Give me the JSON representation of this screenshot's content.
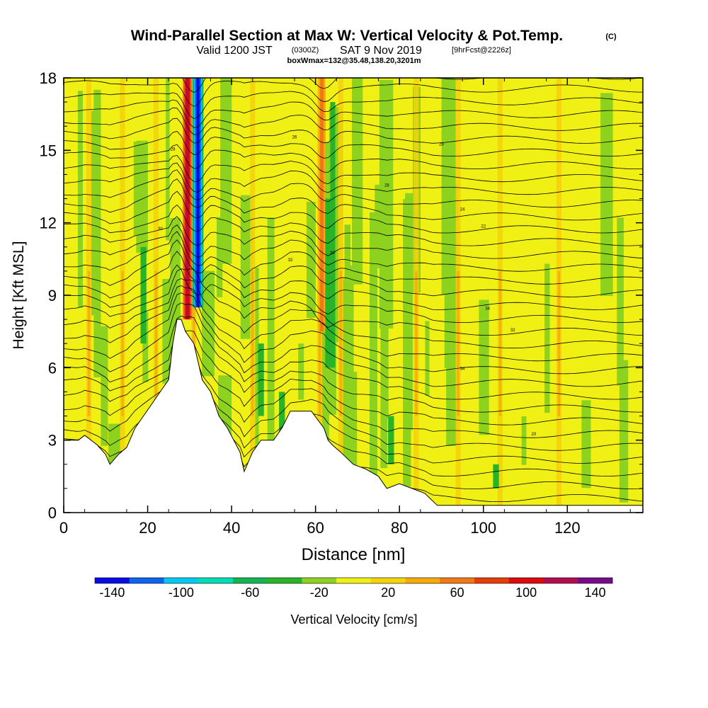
{
  "chart_data": {
    "type": "heatmap",
    "title": {
      "main": "Wind-Parallel Section at Max W: Vertical Velocity & Pot.Temp.",
      "copyright": "(C)",
      "line2_a": "Valid 1200 JST",
      "line2_b": "(0300Z)",
      "line2_c": "SAT 9 Nov 2019",
      "line2_d": "[9hrFcst@2226z]",
      "line3": "boxWmax=132@35.48,138.20,3201m"
    },
    "xlabel": "Distance [nm]",
    "ylabel": "Height [Kft MSL]",
    "xlim": [
      0,
      138
    ],
    "ylim": [
      0,
      18
    ],
    "xticks": [
      "0",
      "20",
      "40",
      "60",
      "80",
      "100",
      "120"
    ],
    "yticks": [
      "0",
      "3",
      "6",
      "9",
      "12",
      "15",
      "18"
    ],
    "colorbar": {
      "label": "Vertical Velocity [cm/s]",
      "tick_labels": [
        "-140",
        "-100",
        "-60",
        "-20",
        "20",
        "60",
        "100",
        "140"
      ],
      "colors": [
        "#0a0ae6",
        "#0a64f0",
        "#00c8f0",
        "#00dcb4",
        "#14b450",
        "#28b428",
        "#8cd21e",
        "#f0f014",
        "#f5d20a",
        "#f5aa0a",
        "#f07814",
        "#e63c0a",
        "#dc0a0a",
        "#b40a50",
        "#780a8c"
      ]
    },
    "terrain_kft": [
      [
        0,
        3.0
      ],
      [
        3.5,
        3.0
      ],
      [
        5,
        3.2
      ],
      [
        8,
        2.8
      ],
      [
        10,
        2.4
      ],
      [
        11,
        2.0
      ],
      [
        13,
        2.4
      ],
      [
        15,
        2.7
      ],
      [
        17,
        3.5
      ],
      [
        19,
        4.0
      ],
      [
        21,
        4.5
      ],
      [
        23,
        5.0
      ],
      [
        25,
        5.5
      ],
      [
        26,
        7.0
      ],
      [
        27,
        8.0
      ],
      [
        28,
        8.0
      ],
      [
        29,
        7.5
      ],
      [
        31,
        7.0
      ],
      [
        33,
        5.5
      ],
      [
        35,
        5.0
      ],
      [
        37,
        4.0
      ],
      [
        39,
        3.5
      ],
      [
        42,
        2.5
      ],
      [
        43,
        1.7
      ],
      [
        45,
        2.5
      ],
      [
        47,
        3.0
      ],
      [
        50,
        3.0
      ],
      [
        52,
        3.5
      ],
      [
        54,
        4.2
      ],
      [
        59,
        4.2
      ],
      [
        62,
        3.5
      ],
      [
        63,
        3.0
      ],
      [
        64,
        2.8
      ],
      [
        66,
        2.5
      ],
      [
        69,
        2.0
      ],
      [
        72,
        1.8
      ],
      [
        75,
        1.5
      ],
      [
        77,
        1.0
      ],
      [
        80,
        1.2
      ],
      [
        83,
        1.0
      ],
      [
        86,
        0.8
      ],
      [
        89,
        0.3
      ],
      [
        92,
        0.3
      ],
      [
        138,
        0.3
      ]
    ],
    "updraft_bands_nm": [
      6,
      14,
      22,
      31,
      45,
      61,
      66,
      84,
      94,
      104,
      118
    ],
    "strong_updraft_nm": 29.5,
    "strong_downdraft_nm": 32,
    "theta_contour_labels": [
      "34",
      "32",
      "30",
      "28",
      "26",
      "24",
      "22",
      "20"
    ]
  }
}
